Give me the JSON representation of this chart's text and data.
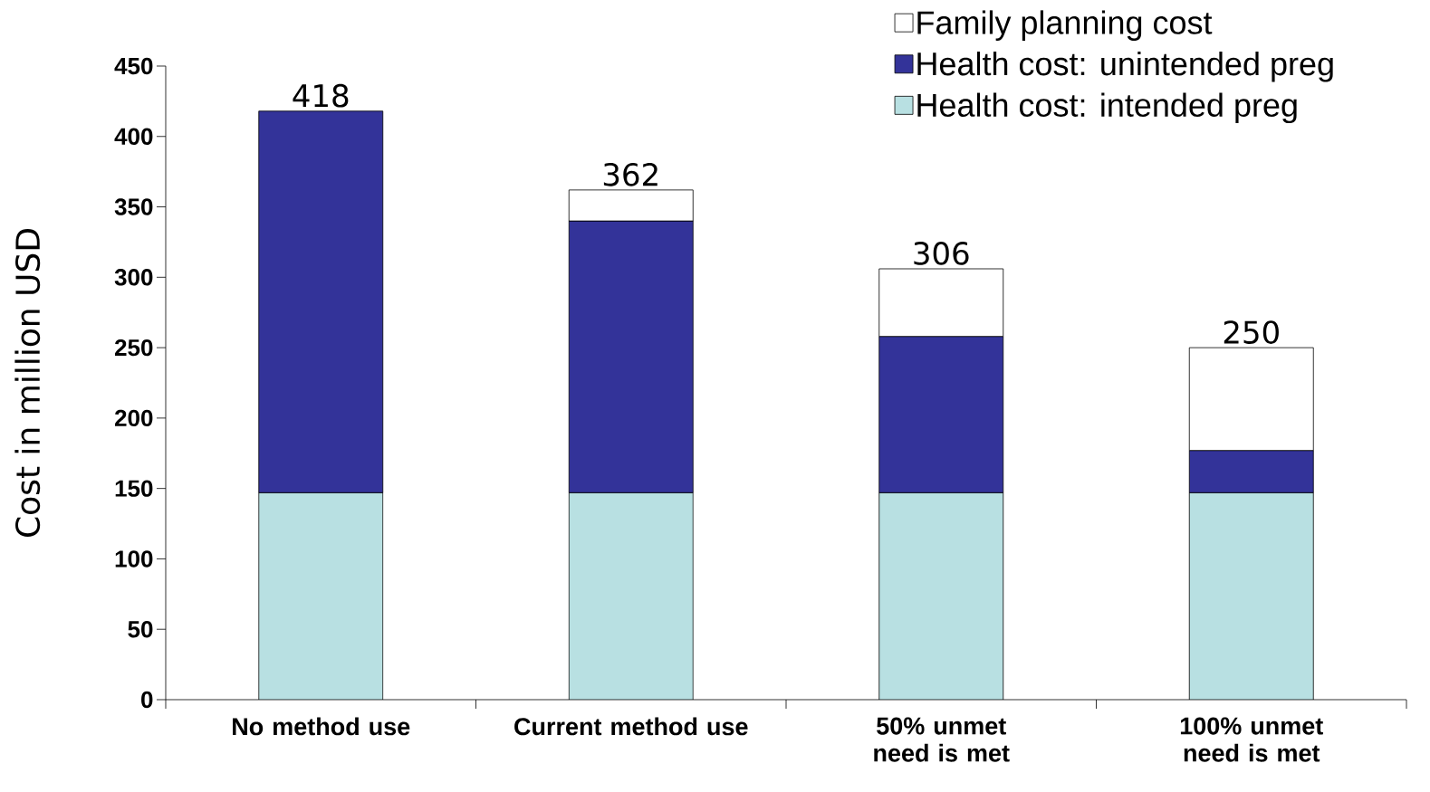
{
  "chart_data": {
    "type": "bar",
    "stacked": true,
    "ylabel": "Cost in million USD",
    "categories": [
      "No method use",
      "Current method use",
      "50% unmet need is met",
      "100% unmet need is met"
    ],
    "series": [
      {
        "name": "Health cost: intended preg",
        "color": "#b8e0e2",
        "values": [
          147,
          147,
          147,
          147
        ]
      },
      {
        "name": "Health cost: unintended preg",
        "color": "#333399",
        "values": [
          271,
          193,
          111,
          30
        ]
      },
      {
        "name": "Family planning cost",
        "color": "#ffffff",
        "values": [
          null,
          22,
          48,
          73
        ]
      }
    ],
    "totals": [
      "418",
      "362",
      "306",
      "250"
    ],
    "ylim": [
      0,
      450
    ],
    "yticks": [
      0,
      50,
      100,
      150,
      200,
      250,
      300,
      350,
      400,
      450
    ],
    "grid": false,
    "legend": "top right"
  }
}
